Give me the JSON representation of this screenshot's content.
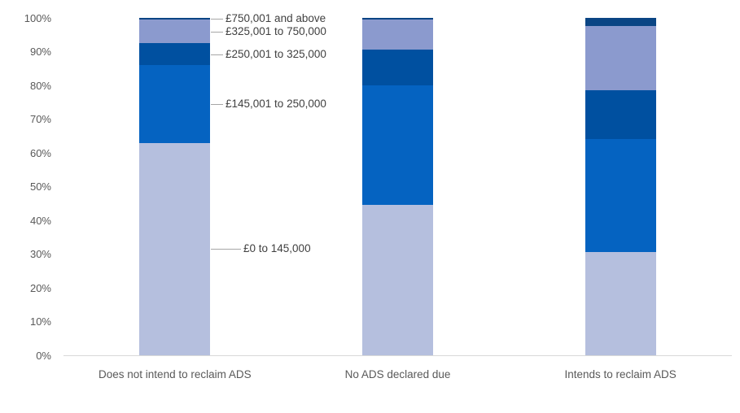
{
  "chart_data": {
    "type": "bar",
    "variant": "stacked-100-percent-column",
    "title": "",
    "xlabel": "",
    "ylabel": "",
    "ylim": [
      0,
      100
    ],
    "grid": false,
    "legend_position": "annotations-with-leader-lines-next-to-first-bar",
    "yticks": [
      "0%",
      "10%",
      "20%",
      "30%",
      "40%",
      "50%",
      "60%",
      "70%",
      "80%",
      "90%",
      "100%"
    ],
    "categories": [
      "Does not intend to reclaim ADS",
      "No ADS declared due",
      "Intends to reclaim ADS"
    ],
    "series": [
      {
        "name": "£0 to 145,000",
        "color": "#b5bfde",
        "values": [
          63,
          44.5,
          30.5
        ]
      },
      {
        "name": "£145,001 to 250,000",
        "color": "#0563c1",
        "values": [
          23,
          35.5,
          33.5
        ]
      },
      {
        "name": "£250,001 to 325,000",
        "color": "#0050a0",
        "values": [
          6.5,
          10.5,
          14.5
        ]
      },
      {
        "name": "£325,001 to 750,000",
        "color": "#8b9ace",
        "values": [
          7,
          9,
          19
        ]
      },
      {
        "name": "£750,001 and above",
        "color": "#0a4584",
        "values": [
          0.5,
          0.5,
          2.5
        ]
      }
    ],
    "colors": {
      "axis_label": "#595959",
      "category_label": "#595959",
      "annotation_label": "#404040",
      "leader_line": "#a6a6a6",
      "baseline": "#d9d9d9",
      "background": "#ffffff"
    }
  }
}
